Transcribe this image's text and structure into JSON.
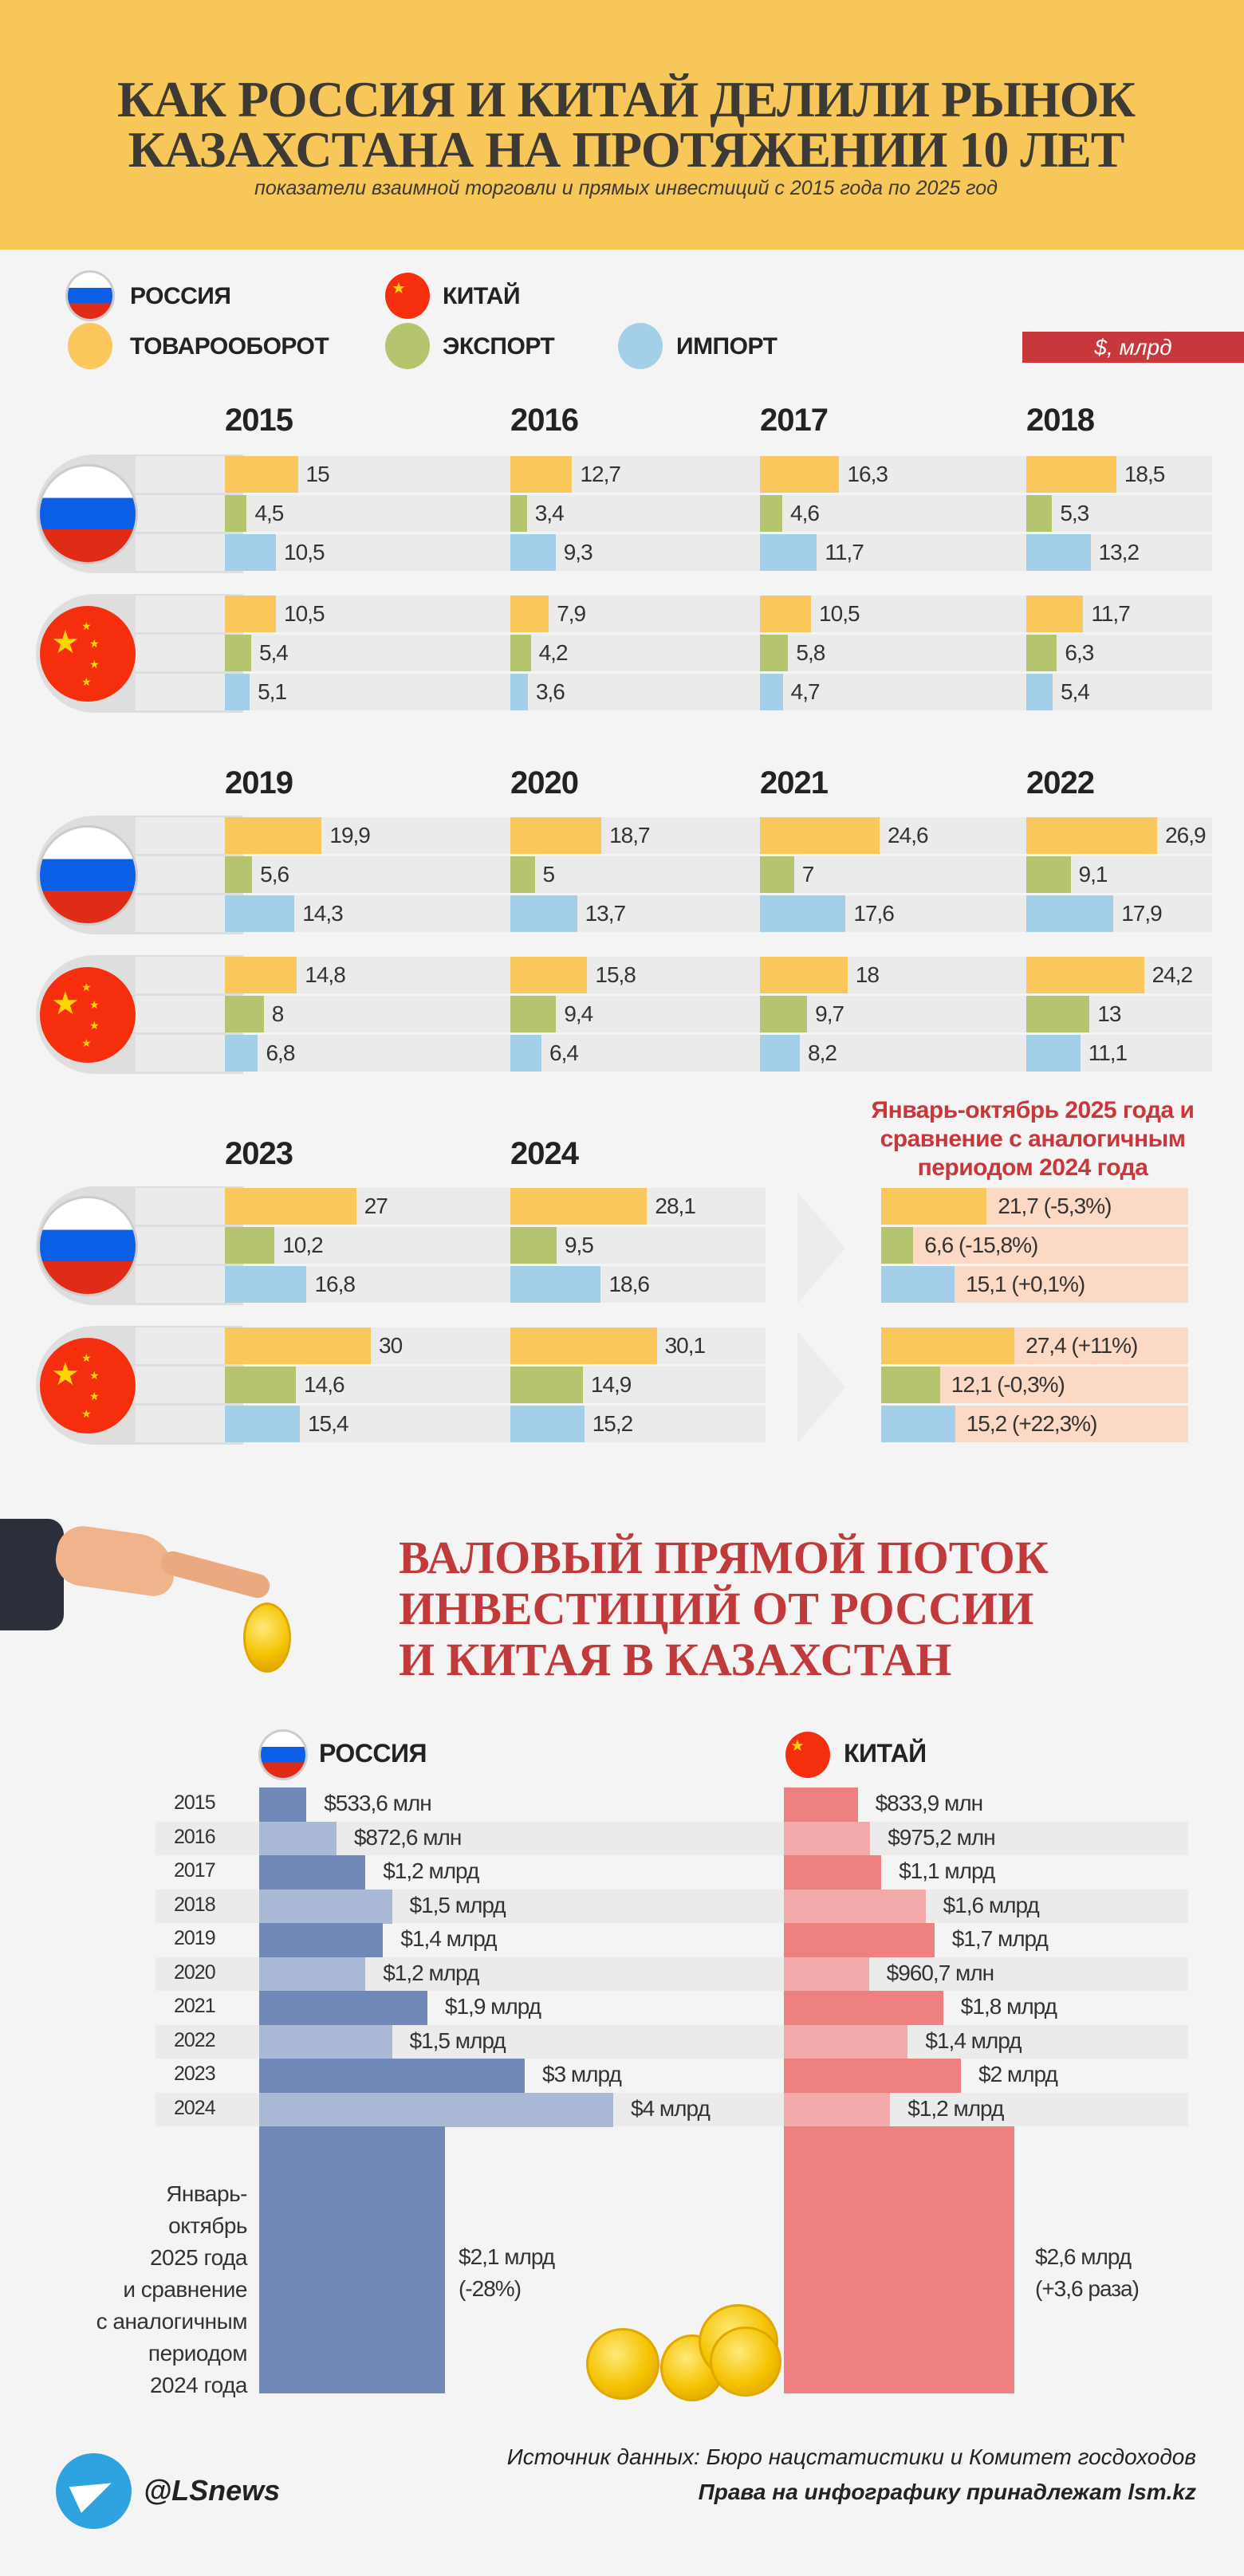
{
  "header": {
    "title_line1": "КАК РОССИЯ И КИТАЙ ДЕЛИЛИ РЫНОК",
    "title_line2": "КАЗАХСТАНА НА ПРОТЯЖЕНИИ 10 ЛЕТ",
    "subtitle": "показатели взаимной торговли и прямых инвестиций с 2015 года по 2025 год"
  },
  "legend": {
    "russia": "РОССИЯ",
    "china": "КИТАЙ",
    "turnover": "ТОВАРООБОРОТ",
    "export": "ЭКСПОРТ",
    "import": "ИМПОРТ",
    "unit": "$, млрд"
  },
  "colors": {
    "header": "#f8c75a",
    "turnover": "#f9c75b",
    "export": "#b5c46e",
    "import": "#a3cfe8",
    "accent": "#c8383a",
    "peach": "#fcd9c4",
    "russia_dark": "#7189b8",
    "russia_light": "#aab9d6",
    "china_dark": "#ef8080",
    "china_light": "#f4aaaa"
  },
  "chart_data": [
    {
      "type": "bar",
      "title": "",
      "unit": "$, млрд",
      "series_order": [
        "ТОВАРООБОРОТ",
        "ЭКСПОРТ",
        "ИМПОРТ"
      ],
      "years": [
        {
          "year": "2015",
          "russia": [
            15,
            4.5,
            10.5
          ],
          "china": [
            10.5,
            5.4,
            5.1
          ]
        },
        {
          "year": "2016",
          "russia": [
            12.7,
            3.4,
            9.3
          ],
          "china": [
            7.9,
            4.2,
            3.6
          ]
        },
        {
          "year": "2017",
          "russia": [
            16.3,
            4.6,
            11.7
          ],
          "china": [
            10.5,
            5.8,
            4.7
          ]
        },
        {
          "year": "2018",
          "russia": [
            18.5,
            5.3,
            13.2
          ],
          "china": [
            11.7,
            6.3,
            5.4
          ]
        },
        {
          "year": "2019",
          "russia": [
            19.9,
            5.6,
            14.3
          ],
          "china": [
            14.8,
            8,
            6.8
          ]
        },
        {
          "year": "2020",
          "russia": [
            18.7,
            5,
            13.7
          ],
          "china": [
            15.8,
            9.4,
            6.4
          ]
        },
        {
          "year": "2021",
          "russia": [
            24.6,
            7,
            17.6
          ],
          "china": [
            18,
            9.7,
            8.2
          ]
        },
        {
          "year": "2022",
          "russia": [
            26.9,
            9.1,
            17.9
          ],
          "china": [
            24.2,
            13,
            11.1
          ]
        },
        {
          "year": "2023",
          "russia": [
            27,
            10.2,
            16.8
          ],
          "china": [
            30,
            14.6,
            15.4
          ]
        },
        {
          "year": "2024",
          "russia": [
            28.1,
            9.5,
            18.6
          ],
          "china": [
            30.1,
            14.9,
            15.2
          ]
        }
      ],
      "ytd_2025": {
        "heading": "Январь-октябрь 2025 года и сравнение с аналогичным периодом 2024 года",
        "russia": [
          {
            "value": 21.7,
            "label": "21,7 (-5,3%)"
          },
          {
            "value": 6.6,
            "label": "6,6 (-15,8%)"
          },
          {
            "value": 15.1,
            "label": "15,1 (+0,1%)"
          }
        ],
        "china": [
          {
            "value": 27.4,
            "label": "27,4 (+11%)"
          },
          {
            "value": 12.1,
            "label": "12,1 (-0,3%)"
          },
          {
            "value": 15.2,
            "label": "15,2 (+22,3%)"
          }
        ]
      }
    },
    {
      "type": "bar",
      "title": "ВАЛОВЫЙ ПРЯМОЙ ПОТОК ИНВЕСТИЦИЙ ОТ РОССИИ И КИТАЯ В КАЗАХСТАН",
      "unit": "$ млрд",
      "russia_label": "РОССИЯ",
      "china_label": "КИТАЙ",
      "categories": [
        "2015",
        "2016",
        "2017",
        "2018",
        "2019",
        "2020",
        "2021",
        "2022",
        "2023",
        "2024"
      ],
      "russia": {
        "values": [
          0.5336,
          0.8726,
          1.2,
          1.5,
          1.4,
          1.2,
          1.9,
          1.5,
          3,
          4
        ],
        "labels": [
          "$533,6 млн",
          "$872,6 млн",
          "$1,2 млрд",
          "$1,5 млрд",
          "$1,4 млрд",
          "$1,2 млрд",
          "$1,9 млрд",
          "$1,5 млрд",
          "$3 млрд",
          "$4 млрд"
        ]
      },
      "china": {
        "values": [
          0.8339,
          0.9752,
          1.1,
          1.6,
          1.7,
          0.9607,
          1.8,
          1.4,
          2,
          1.2
        ],
        "labels": [
          "$833,9 млн",
          "$975,2 млн",
          "$1,1 млрд",
          "$1,6 млрд",
          "$1,7 млрд",
          "$960,7 млн",
          "$1,8 млрд",
          "$1,4 млрд",
          "$2 млрд",
          "$1,2 млрд"
        ]
      },
      "ytd_2025": {
        "note": [
          "Январь-",
          "октябрь",
          "2025 года",
          "и сравнение",
          "с аналогичным",
          "периодом",
          "2024 года"
        ],
        "russia": {
          "value": 2.1,
          "label_line1": "$2,1 млрд",
          "label_line2": "(-28%)"
        },
        "china": {
          "value": 2.6,
          "label_line1": "$2,6 млрд",
          "label_line2": "(+3,6 раза)"
        }
      }
    }
  ],
  "inv_title": [
    "ВАЛОВЫЙ ПРЯМОЙ ПОТОК",
    "ИНВЕСТИЦИЙ ОТ РОССИИ",
    "И КИТАЯ В КАЗАХСТАН"
  ],
  "footer": {
    "handle": "@LSnews",
    "source": "Источник данных: Бюро нацстатистики и Комитет госдоходов",
    "rights": "Права на инфографику принадлежат lsm.kz"
  }
}
